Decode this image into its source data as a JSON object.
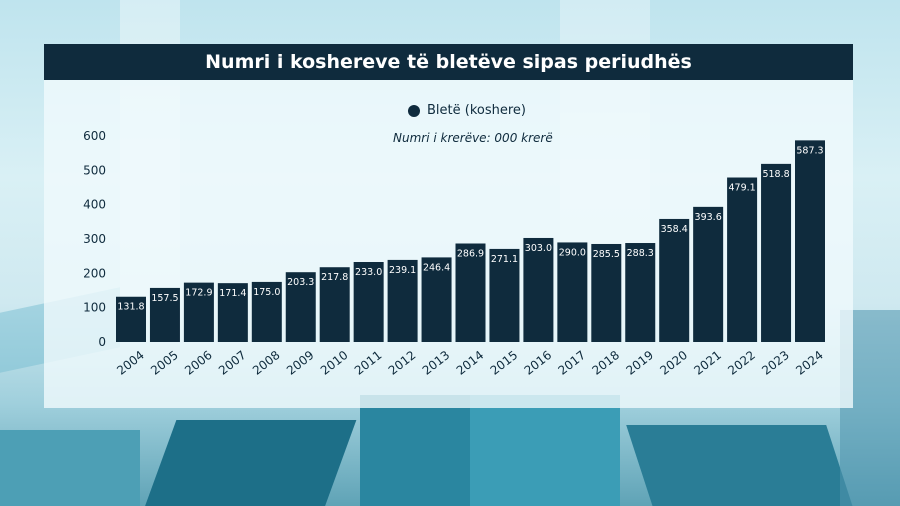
{
  "title": "Numri i koshereve të bletëve sipas periudhës",
  "legend": "Bletë (koshere)",
  "note": "Numri i krerëve: 000 krerë",
  "colors": {
    "bar": "#0f2b3d",
    "header": "#0f2b3d",
    "text": "#0f2b3d",
    "label": "#ffffff"
  },
  "chart_data": {
    "type": "bar",
    "title": "Numri i koshereve të bletëve sipas periudhës",
    "series": [
      {
        "name": "Bletë (koshere)",
        "values": [
          131.8,
          157.5,
          172.9,
          171.4,
          175.0,
          203.3,
          217.8,
          233.0,
          239.1,
          246.4,
          286.9,
          271.1,
          303.0,
          290.0,
          285.5,
          288.3,
          358.4,
          393.6,
          479.1,
          518.8,
          587.3
        ]
      }
    ],
    "categories": [
      "2004",
      "2005",
      "2006",
      "2007",
      "2008",
      "2009",
      "2010",
      "2011",
      "2012",
      "2013",
      "2014",
      "2015",
      "2016",
      "2017",
      "2018",
      "2019",
      "2020",
      "2021",
      "2022",
      "2023",
      "2024"
    ],
    "value_labels": [
      "131.8",
      "157.5",
      "172.9",
      "171.4",
      "175.0",
      "203.3",
      "217.8",
      "233.0",
      "239.1",
      "246.4",
      "286.9",
      "271.1",
      "303.0",
      "290.0",
      "285.5",
      "288.3",
      "358.4",
      "393.6",
      "479.1",
      "518.8",
      "587.3"
    ],
    "ylim": [
      0,
      600
    ],
    "yticks": [
      "0",
      "100",
      "200",
      "300",
      "400",
      "500",
      "600"
    ],
    "grid": false,
    "legend_position": "top-center"
  }
}
